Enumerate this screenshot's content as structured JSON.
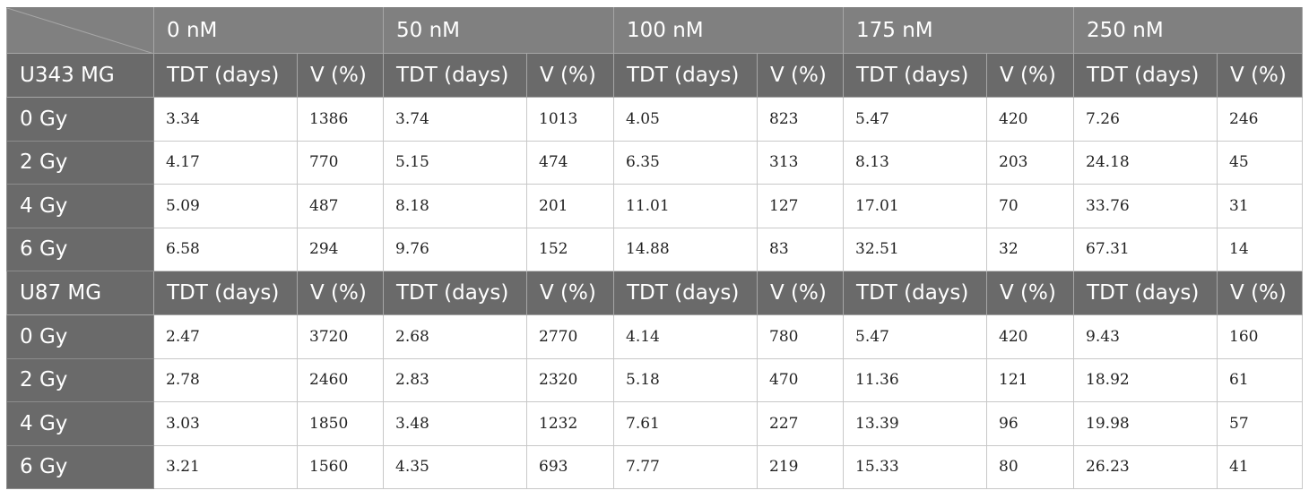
{
  "concentrations": [
    "0 nM",
    "50 nM",
    "100 nM",
    "175 nM",
    "250 nM"
  ],
  "sub_headers": {
    "tdt": "TDT (days)",
    "v": "V (%)"
  },
  "groups": [
    {
      "cell_line": "U343 MG",
      "rows": [
        {
          "dose": "0 Gy",
          "values": [
            "3.34",
            "1386",
            "3.74",
            "1013",
            "4.05",
            "823",
            "5.47",
            "420",
            "7.26",
            "246"
          ]
        },
        {
          "dose": "2 Gy",
          "values": [
            "4.17",
            "770",
            "5.15",
            "474",
            "6.35",
            "313",
            "8.13",
            "203",
            "24.18",
            "45"
          ]
        },
        {
          "dose": "4 Gy",
          "values": [
            "5.09",
            "487",
            "8.18",
            "201",
            "11.01",
            "127",
            "17.01",
            "70",
            "33.76",
            "31"
          ]
        },
        {
          "dose": "6 Gy",
          "values": [
            "6.58",
            "294",
            "9.76",
            "152",
            "14.88",
            "83",
            "32.51",
            "32",
            "67.31",
            "14"
          ]
        }
      ]
    },
    {
      "cell_line": "U87 MG",
      "rows": [
        {
          "dose": "0 Gy",
          "values": [
            "2.47",
            "3720",
            "2.68",
            "2770",
            "4.14",
            "780",
            "5.47",
            "420",
            "9.43",
            "160"
          ]
        },
        {
          "dose": "2 Gy",
          "values": [
            "2.78",
            "2460",
            "2.83",
            "2320",
            "5.18",
            "470",
            "11.36",
            "121",
            "18.92",
            "61"
          ]
        },
        {
          "dose": "4 Gy",
          "values": [
            "3.03",
            "1850",
            "3.48",
            "1232",
            "7.61",
            "227",
            "13.39",
            "96",
            "19.98",
            "57"
          ]
        },
        {
          "dose": "6 Gy",
          "values": [
            "3.21",
            "1560",
            "4.35",
            "693",
            "7.77",
            "219",
            "15.33",
            "80",
            "26.23",
            "41"
          ]
        }
      ]
    }
  ]
}
